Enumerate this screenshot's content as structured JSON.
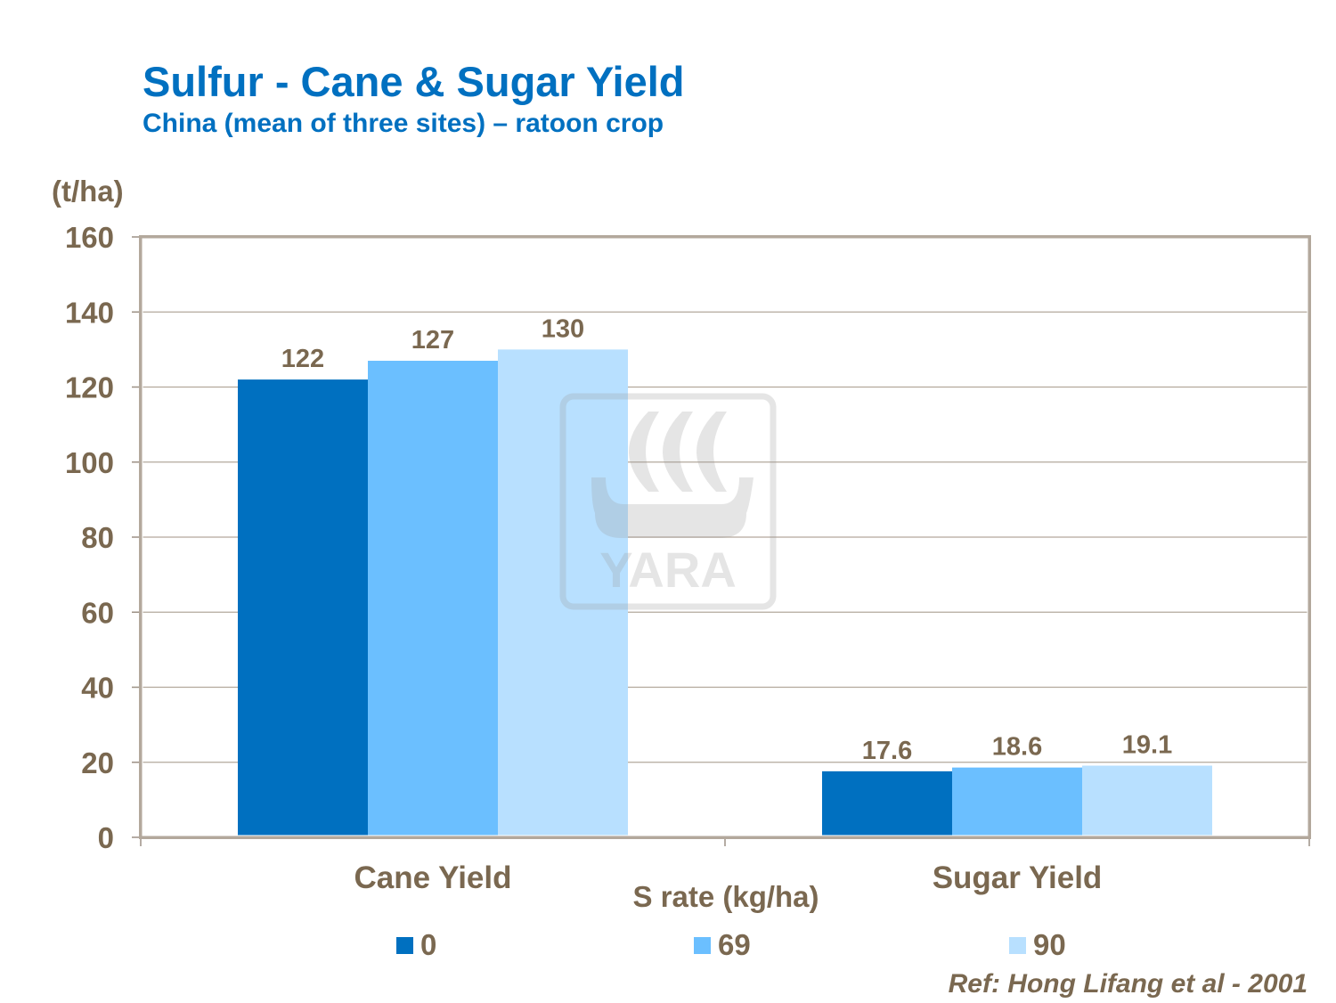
{
  "chart_data": {
    "type": "bar",
    "title": "Sulfur - Cane & Sugar Yield",
    "subtitle": "China (mean of three sites) – ratoon crop",
    "ylabel": "(t/ha)",
    "xlabel": "S rate (kg/ha)",
    "categories": [
      "Cane Yield",
      "Sugar Yield"
    ],
    "series": [
      {
        "name": "0",
        "values": [
          122,
          17.6
        ],
        "labels": [
          "122",
          "17.6"
        ],
        "color": "#0070c0"
      },
      {
        "name": "69",
        "values": [
          127,
          18.6
        ],
        "labels": [
          "127",
          "18.6"
        ],
        "color": "#6bbfff"
      },
      {
        "name": "90",
        "values": [
          130,
          19.1
        ],
        "labels": [
          "130",
          "19.1"
        ],
        "color": "#b8e0ff"
      }
    ],
    "ylim": [
      0,
      160
    ],
    "yticks": [
      "0",
      "20",
      "40",
      "60",
      "80",
      "100",
      "120",
      "140",
      "160"
    ],
    "grid": true,
    "legend": "bottom"
  },
  "reference": "Ref: Hong Lifang et al - 2001",
  "watermark": "YARA"
}
